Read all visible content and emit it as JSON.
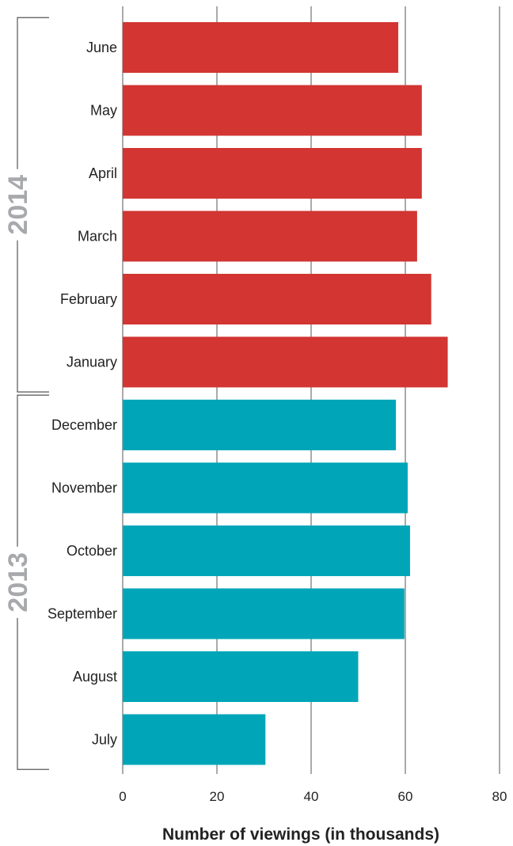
{
  "chart_data": {
    "type": "bar",
    "orientation": "horizontal",
    "xlabel": "Number of viewings (in thousands)",
    "xlim": [
      0,
      80
    ],
    "xticks": [
      "0",
      "20",
      "40",
      "60",
      "80"
    ],
    "grid": true,
    "categories": [
      "June",
      "May",
      "April",
      "March",
      "February",
      "January",
      "December",
      "November",
      "October",
      "September",
      "August",
      "July"
    ],
    "values": [
      58.5,
      63.5,
      63.5,
      62.5,
      65.5,
      69,
      58,
      60.5,
      61,
      59.8,
      50,
      30.3
    ],
    "groups": [
      {
        "label": "2014",
        "categories": [
          "June",
          "May",
          "April",
          "March",
          "February",
          "January"
        ],
        "color": "#d23532"
      },
      {
        "label": "2013",
        "categories": [
          "December",
          "November",
          "October",
          "September",
          "August",
          "July"
        ],
        "color": "#00a6b8"
      }
    ]
  }
}
